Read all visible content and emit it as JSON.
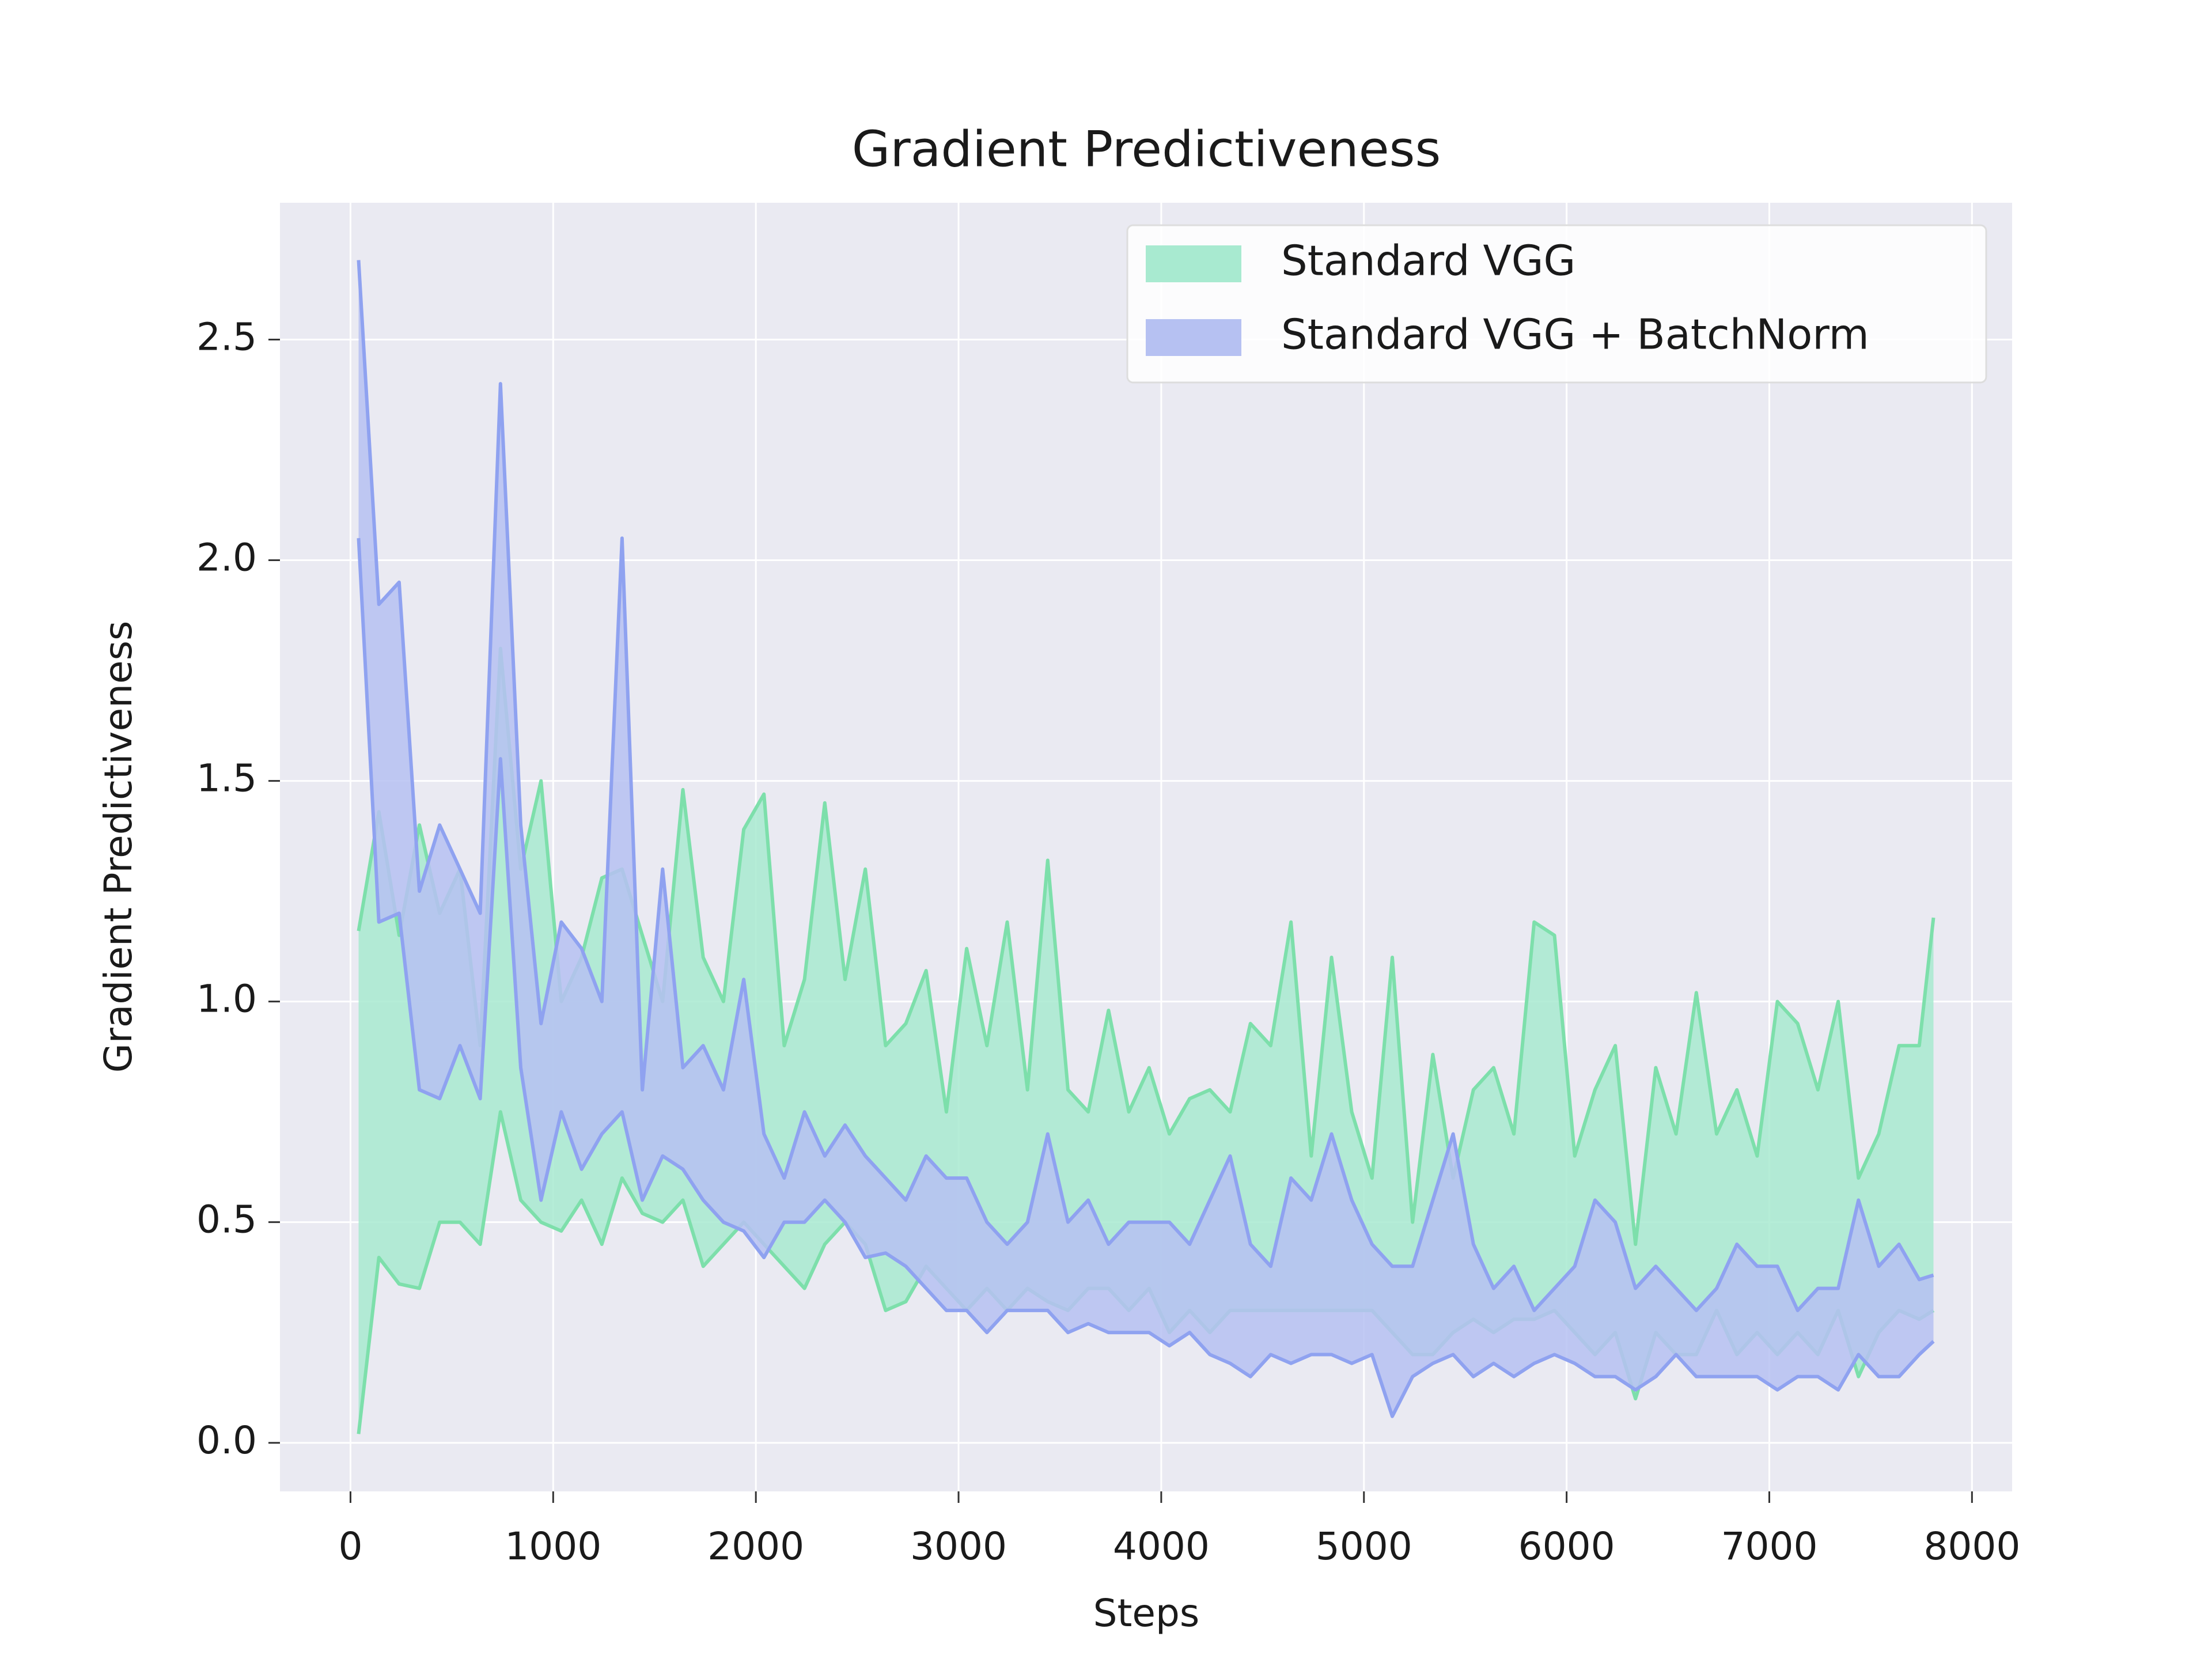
{
  "chart_data": {
    "type": "range_band",
    "title": "Gradient Predictiveness",
    "x_label": "Steps",
    "y_label": "Gradient Predictiveness",
    "x": [
      40,
      140,
      240,
      340,
      440,
      540,
      640,
      740,
      840,
      940,
      1040,
      1140,
      1240,
      1340,
      1440,
      1540,
      1640,
      1740,
      1840,
      1940,
      2040,
      2140,
      2240,
      2340,
      2440,
      2540,
      2640,
      2740,
      2840,
      2940,
      3040,
      3140,
      3240,
      3340,
      3440,
      3540,
      3640,
      3740,
      3840,
      3940,
      4040,
      4140,
      4240,
      4340,
      4440,
      4540,
      4640,
      4740,
      4840,
      4940,
      5040,
      5140,
      5240,
      5340,
      5440,
      5540,
      5640,
      5740,
      5840,
      5940,
      6040,
      6140,
      6240,
      6340,
      6440,
      6540,
      6640,
      6740,
      6840,
      6940,
      7040,
      7140,
      7240,
      7340,
      7440,
      7540,
      7640,
      7740,
      7810
    ],
    "series": [
      {
        "name": "Standard VGG",
        "color": "#7ddfab",
        "fill_color": "#a8ead0",
        "upper": [
          1.16,
          1.43,
          1.15,
          1.4,
          1.2,
          1.3,
          0.9,
          1.8,
          1.3,
          1.5,
          1.0,
          1.1,
          1.28,
          1.3,
          1.15,
          1.0,
          1.48,
          1.1,
          1.0,
          1.39,
          1.47,
          0.9,
          1.05,
          1.45,
          1.05,
          1.3,
          0.9,
          0.95,
          1.07,
          0.75,
          1.12,
          0.9,
          1.18,
          0.8,
          1.32,
          0.8,
          0.75,
          0.98,
          0.75,
          0.85,
          0.7,
          0.78,
          0.8,
          0.75,
          0.95,
          0.9,
          1.18,
          0.65,
          1.1,
          0.75,
          0.6,
          1.1,
          0.5,
          0.88,
          0.6,
          0.8,
          0.85,
          0.7,
          1.18,
          1.15,
          0.65,
          0.8,
          0.9,
          0.45,
          0.85,
          0.7,
          1.02,
          0.7,
          0.8,
          0.65,
          1.0,
          0.95,
          0.8,
          1.0,
          0.6,
          0.7,
          0.9,
          0.9,
          1.19
        ],
        "lower": [
          0.02,
          0.42,
          0.36,
          0.35,
          0.5,
          0.5,
          0.45,
          0.75,
          0.55,
          0.5,
          0.48,
          0.55,
          0.45,
          0.6,
          0.52,
          0.5,
          0.55,
          0.4,
          0.45,
          0.5,
          0.45,
          0.4,
          0.35,
          0.45,
          0.5,
          0.45,
          0.3,
          0.32,
          0.4,
          0.35,
          0.3,
          0.35,
          0.3,
          0.35,
          0.32,
          0.3,
          0.35,
          0.35,
          0.3,
          0.35,
          0.25,
          0.3,
          0.25,
          0.3,
          0.3,
          0.3,
          0.3,
          0.3,
          0.3,
          0.3,
          0.3,
          0.25,
          0.2,
          0.2,
          0.25,
          0.28,
          0.25,
          0.28,
          0.28,
          0.3,
          0.25,
          0.2,
          0.25,
          0.1,
          0.25,
          0.2,
          0.2,
          0.3,
          0.2,
          0.25,
          0.2,
          0.25,
          0.2,
          0.3,
          0.15,
          0.25,
          0.3,
          0.28,
          0.3
        ]
      },
      {
        "name": "Standard VGG + BatchNorm",
        "color": "#8fa2f0",
        "fill_color": "#b6c1f2",
        "upper": [
          2.68,
          1.9,
          1.95,
          1.25,
          1.4,
          1.3,
          1.2,
          2.4,
          1.4,
          0.95,
          1.18,
          1.12,
          1.0,
          2.05,
          0.8,
          1.3,
          0.85,
          0.9,
          0.8,
          1.05,
          0.7,
          0.6,
          0.75,
          0.65,
          0.72,
          0.65,
          0.6,
          0.55,
          0.65,
          0.6,
          0.6,
          0.5,
          0.45,
          0.5,
          0.7,
          0.5,
          0.55,
          0.45,
          0.5,
          0.5,
          0.5,
          0.45,
          0.55,
          0.65,
          0.45,
          0.4,
          0.6,
          0.55,
          0.7,
          0.55,
          0.45,
          0.4,
          0.4,
          0.55,
          0.7,
          0.45,
          0.35,
          0.4,
          0.3,
          0.35,
          0.4,
          0.55,
          0.5,
          0.35,
          0.4,
          0.35,
          0.3,
          0.35,
          0.45,
          0.4,
          0.4,
          0.3,
          0.35,
          0.35,
          0.55,
          0.4,
          0.45,
          0.37,
          0.38
        ],
        "lower": [
          2.05,
          1.18,
          1.2,
          0.8,
          0.78,
          0.9,
          0.78,
          1.55,
          0.85,
          0.55,
          0.75,
          0.62,
          0.7,
          0.75,
          0.55,
          0.65,
          0.62,
          0.55,
          0.5,
          0.48,
          0.42,
          0.5,
          0.5,
          0.55,
          0.5,
          0.42,
          0.43,
          0.4,
          0.35,
          0.3,
          0.3,
          0.25,
          0.3,
          0.3,
          0.3,
          0.25,
          0.27,
          0.25,
          0.25,
          0.25,
          0.22,
          0.25,
          0.2,
          0.18,
          0.15,
          0.2,
          0.18,
          0.2,
          0.2,
          0.18,
          0.2,
          0.06,
          0.15,
          0.18,
          0.2,
          0.15,
          0.18,
          0.15,
          0.18,
          0.2,
          0.18,
          0.15,
          0.15,
          0.12,
          0.15,
          0.2,
          0.15,
          0.15,
          0.15,
          0.15,
          0.12,
          0.15,
          0.15,
          0.12,
          0.2,
          0.15,
          0.15,
          0.2,
          0.23
        ]
      }
    ],
    "xlim": [
      -348,
      8198
    ],
    "ylim": [
      -0.11,
      2.81
    ],
    "xticks": [
      0,
      1000,
      2000,
      3000,
      4000,
      5000,
      6000,
      7000,
      8000
    ],
    "yticks": [
      {
        "value": 0,
        "label": "0.0"
      },
      0.5,
      {
        "value": 1,
        "label": "1.0"
      },
      1.5,
      {
        "value": 2,
        "label": "2.0"
      },
      2.5
    ],
    "grid": true,
    "legend_position": "upper right"
  }
}
